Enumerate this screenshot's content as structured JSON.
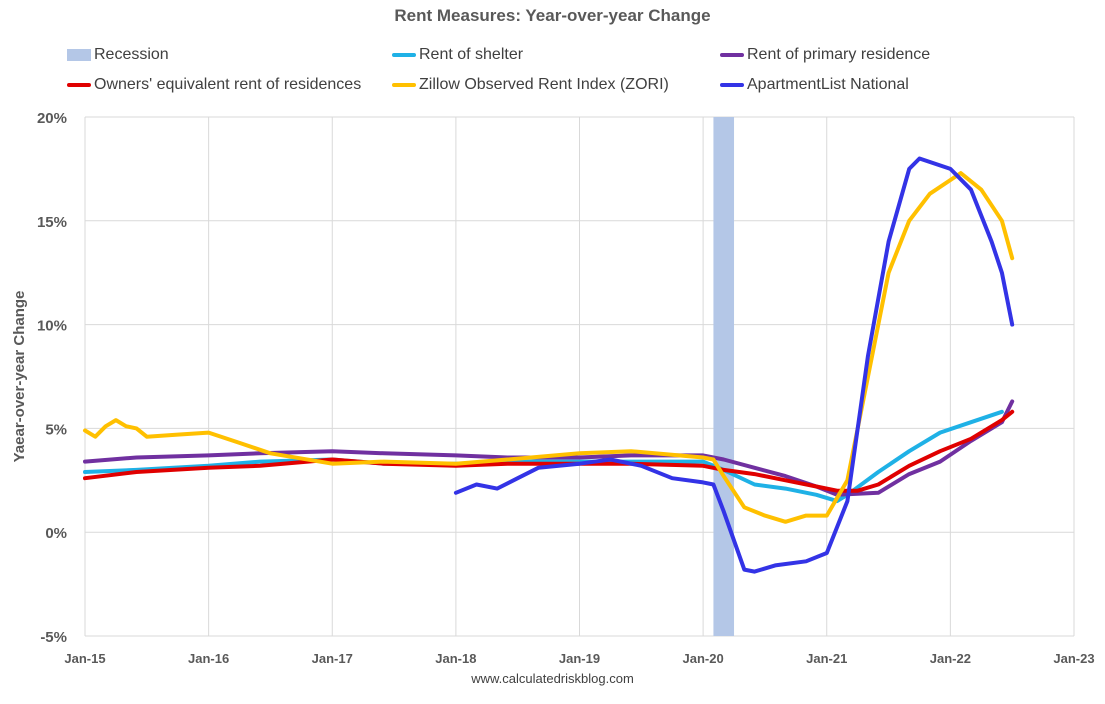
{
  "chart_data": {
    "type": "line",
    "title": "Rent Measures: Year-over-year Change",
    "xlabel": "",
    "ylabel": "Yaear-over-year Change",
    "source": "www.calculatedriskblog.com",
    "x_ticks": [
      "Jan-15",
      "Jan-16",
      "Jan-17",
      "Jan-18",
      "Jan-19",
      "Jan-20",
      "Jan-21",
      "Jan-22",
      "Jan-23"
    ],
    "y_ticks": [
      "-5%",
      "0%",
      "5%",
      "10%",
      "15%",
      "20%"
    ],
    "ylim": [
      -5,
      20
    ],
    "xlim": [
      "2015-01",
      "2023-01"
    ],
    "grid": true,
    "legend_position": "top",
    "recession": {
      "name": "Recession",
      "start": "2020-02",
      "end": "2020-04",
      "color": "#b4c7e7"
    },
    "series": [
      {
        "name": "Rent of shelter",
        "color": "#1fb1e6",
        "points": [
          [
            "2015-01",
            2.9
          ],
          [
            "2015-06",
            3.0
          ],
          [
            "2016-01",
            3.2
          ],
          [
            "2016-06",
            3.4
          ],
          [
            "2017-01",
            3.5
          ],
          [
            "2017-06",
            3.3
          ],
          [
            "2018-01",
            3.3
          ],
          [
            "2018-06",
            3.4
          ],
          [
            "2019-01",
            3.4
          ],
          [
            "2019-06",
            3.4
          ],
          [
            "2020-01",
            3.4
          ],
          [
            "2020-03",
            3.0
          ],
          [
            "2020-06",
            2.3
          ],
          [
            "2020-09",
            2.1
          ],
          [
            "2020-12",
            1.8
          ],
          [
            "2021-02",
            1.5
          ],
          [
            "2021-03",
            1.8
          ],
          [
            "2021-06",
            2.9
          ],
          [
            "2021-09",
            3.9
          ],
          [
            "2021-12",
            4.8
          ],
          [
            "2022-03",
            5.3
          ],
          [
            "2022-06",
            5.8
          ]
        ]
      },
      {
        "name": "Rent of primary residence",
        "color": "#7030a0",
        "points": [
          [
            "2015-01",
            3.4
          ],
          [
            "2015-06",
            3.6
          ],
          [
            "2016-01",
            3.7
          ],
          [
            "2016-06",
            3.8
          ],
          [
            "2017-01",
            3.9
          ],
          [
            "2017-06",
            3.8
          ],
          [
            "2018-01",
            3.7
          ],
          [
            "2018-06",
            3.6
          ],
          [
            "2019-01",
            3.6
          ],
          [
            "2019-06",
            3.7
          ],
          [
            "2020-01",
            3.7
          ],
          [
            "2020-03",
            3.5
          ],
          [
            "2020-06",
            3.1
          ],
          [
            "2020-09",
            2.7
          ],
          [
            "2020-12",
            2.2
          ],
          [
            "2021-02",
            1.8
          ],
          [
            "2021-06",
            1.9
          ],
          [
            "2021-09",
            2.8
          ],
          [
            "2021-12",
            3.4
          ],
          [
            "2022-03",
            4.4
          ],
          [
            "2022-06",
            5.3
          ],
          [
            "2022-07",
            6.3
          ]
        ]
      },
      {
        "name": "Owners' equivalent rent of residences",
        "color": "#e00000",
        "points": [
          [
            "2015-01",
            2.6
          ],
          [
            "2015-06",
            2.9
          ],
          [
            "2016-01",
            3.1
          ],
          [
            "2016-06",
            3.2
          ],
          [
            "2017-01",
            3.5
          ],
          [
            "2017-06",
            3.3
          ],
          [
            "2018-01",
            3.2
          ],
          [
            "2018-06",
            3.3
          ],
          [
            "2019-01",
            3.3
          ],
          [
            "2019-06",
            3.3
          ],
          [
            "2020-01",
            3.2
          ],
          [
            "2020-03",
            3.0
          ],
          [
            "2020-06",
            2.8
          ],
          [
            "2020-09",
            2.5
          ],
          [
            "2020-12",
            2.2
          ],
          [
            "2021-02",
            2.0
          ],
          [
            "2021-04",
            2.0
          ],
          [
            "2021-06",
            2.3
          ],
          [
            "2021-09",
            3.2
          ],
          [
            "2021-12",
            3.9
          ],
          [
            "2022-03",
            4.5
          ],
          [
            "2022-06",
            5.4
          ],
          [
            "2022-07",
            5.8
          ]
        ]
      },
      {
        "name": "Zillow Observed Rent Index (ZORI)",
        "color": "#ffc000",
        "points": [
          [
            "2015-01",
            4.9
          ],
          [
            "2015-02",
            4.6
          ],
          [
            "2015-03",
            5.1
          ],
          [
            "2015-04",
            5.4
          ],
          [
            "2015-05",
            5.1
          ],
          [
            "2015-06",
            5.0
          ],
          [
            "2015-07",
            4.6
          ],
          [
            "2015-10",
            4.7
          ],
          [
            "2016-01",
            4.8
          ],
          [
            "2016-04",
            4.3
          ],
          [
            "2016-07",
            3.8
          ],
          [
            "2017-01",
            3.3
          ],
          [
            "2017-06",
            3.4
          ],
          [
            "2018-01",
            3.3
          ],
          [
            "2018-06",
            3.5
          ],
          [
            "2019-01",
            3.8
          ],
          [
            "2019-06",
            3.9
          ],
          [
            "2020-01",
            3.6
          ],
          [
            "2020-02",
            3.5
          ],
          [
            "2020-03",
            2.7
          ],
          [
            "2020-05",
            1.2
          ],
          [
            "2020-07",
            0.8
          ],
          [
            "2020-09",
            0.5
          ],
          [
            "2020-11",
            0.8
          ],
          [
            "2021-01",
            0.8
          ],
          [
            "2021-03",
            2.5
          ],
          [
            "2021-05",
            7.5
          ],
          [
            "2021-07",
            12.5
          ],
          [
            "2021-09",
            15.0
          ],
          [
            "2021-11",
            16.3
          ],
          [
            "2022-02",
            17.3
          ],
          [
            "2022-04",
            16.5
          ],
          [
            "2022-06",
            15.0
          ],
          [
            "2022-07",
            13.2
          ]
        ]
      },
      {
        "name": "ApartmentList National",
        "color": "#3333e6",
        "points": [
          [
            "2018-01",
            1.9
          ],
          [
            "2018-03",
            2.3
          ],
          [
            "2018-05",
            2.1
          ],
          [
            "2018-07",
            2.6
          ],
          [
            "2018-09",
            3.1
          ],
          [
            "2018-11",
            3.2
          ],
          [
            "2019-01",
            3.3
          ],
          [
            "2019-04",
            3.5
          ],
          [
            "2019-07",
            3.2
          ],
          [
            "2019-10",
            2.6
          ],
          [
            "2020-01",
            2.4
          ],
          [
            "2020-02",
            2.3
          ],
          [
            "2020-03",
            1.0
          ],
          [
            "2020-05",
            -1.8
          ],
          [
            "2020-06",
            -1.9
          ],
          [
            "2020-08",
            -1.6
          ],
          [
            "2020-11",
            -1.4
          ],
          [
            "2021-01",
            -1.0
          ],
          [
            "2021-03",
            1.5
          ],
          [
            "2021-05",
            8.5
          ],
          [
            "2021-07",
            14.0
          ],
          [
            "2021-09",
            17.5
          ],
          [
            "2021-10",
            18.0
          ],
          [
            "2022-01",
            17.5
          ],
          [
            "2022-03",
            16.5
          ],
          [
            "2022-05",
            14.0
          ],
          [
            "2022-06",
            12.5
          ],
          [
            "2022-07",
            10.0
          ]
        ]
      }
    ]
  }
}
